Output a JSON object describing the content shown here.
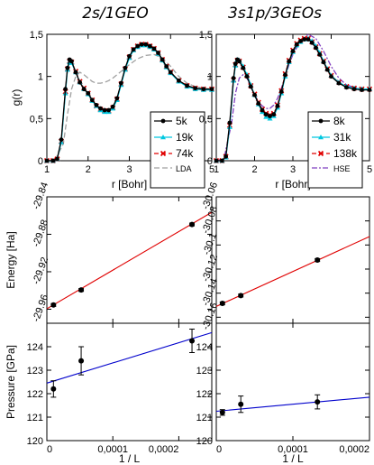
{
  "titles": {
    "left": "2s/1GEO",
    "right": "3s1p/3GEOs"
  },
  "chart_data": [
    {
      "id": "gr_left",
      "type": "line",
      "xlabel": "r [Bohr]",
      "ylabel": "g(r)",
      "xlim": [
        1,
        5
      ],
      "ylim": [
        0,
        1.5
      ],
      "xticks": [
        1,
        2,
        3,
        4,
        5
      ],
      "xtick_labels": [
        "1",
        "2",
        "3",
        "4",
        "5"
      ],
      "yticks": [
        0,
        0.5,
        1,
        1.5
      ],
      "ytick_labels": [
        "0",
        "0,5",
        "1",
        "1,5"
      ],
      "legend": "right",
      "series": [
        {
          "name": "5k",
          "color": "#000000",
          "dash": "",
          "marker": "circle",
          "x": [
            1.0,
            1.15,
            1.25,
            1.35,
            1.45,
            1.5,
            1.55,
            1.6,
            1.7,
            1.8,
            1.9,
            2.0,
            2.1,
            2.2,
            2.3,
            2.4,
            2.5,
            2.6,
            2.7,
            2.8,
            2.9,
            3.0,
            3.1,
            3.2,
            3.3,
            3.4,
            3.5,
            3.6,
            3.7,
            3.8,
            3.9,
            4.0,
            4.2,
            4.4,
            4.6,
            4.8,
            5.0
          ],
          "y": [
            0,
            0,
            0.02,
            0.25,
            0.85,
            1.1,
            1.2,
            1.18,
            1.05,
            0.93,
            0.85,
            0.8,
            0.72,
            0.66,
            0.62,
            0.6,
            0.6,
            0.64,
            0.74,
            0.92,
            1.1,
            1.24,
            1.32,
            1.36,
            1.38,
            1.38,
            1.36,
            1.33,
            1.28,
            1.2,
            1.12,
            1.05,
            0.95,
            0.89,
            0.86,
            0.85,
            0.85
          ]
        },
        {
          "name": "19k",
          "color": "#00c8e0",
          "dash": "",
          "marker": "triangle",
          "x": [
            1.0,
            1.15,
            1.25,
            1.35,
            1.45,
            1.5,
            1.55,
            1.6,
            1.7,
            1.8,
            1.9,
            2.0,
            2.1,
            2.2,
            2.3,
            2.4,
            2.5,
            2.6,
            2.7,
            2.8,
            2.9,
            3.0,
            3.1,
            3.2,
            3.3,
            3.4,
            3.5,
            3.6,
            3.7,
            3.8,
            3.9,
            4.0,
            4.2,
            4.4,
            4.6,
            4.8,
            5.0
          ],
          "y": [
            0,
            0,
            0.02,
            0.22,
            0.8,
            1.08,
            1.17,
            1.16,
            1.05,
            0.93,
            0.85,
            0.79,
            0.71,
            0.65,
            0.6,
            0.58,
            0.58,
            0.62,
            0.72,
            0.9,
            1.08,
            1.22,
            1.31,
            1.35,
            1.37,
            1.37,
            1.35,
            1.32,
            1.27,
            1.19,
            1.11,
            1.04,
            0.94,
            0.88,
            0.85,
            0.84,
            0.84
          ]
        },
        {
          "name": "74k",
          "color": "#e00000",
          "dash": "5,3",
          "marker": "cross",
          "x": [
            1.0,
            1.15,
            1.25,
            1.35,
            1.45,
            1.5,
            1.55,
            1.6,
            1.7,
            1.8,
            1.9,
            2.0,
            2.1,
            2.2,
            2.3,
            2.4,
            2.5,
            2.6,
            2.7,
            2.8,
            2.9,
            3.0,
            3.1,
            3.2,
            3.3,
            3.4,
            3.5,
            3.6,
            3.7,
            3.8,
            3.9,
            4.0,
            4.2,
            4.4,
            4.6,
            4.8,
            5.0
          ],
          "y": [
            0,
            0,
            0.02,
            0.23,
            0.82,
            1.09,
            1.18,
            1.17,
            1.06,
            0.94,
            0.86,
            0.8,
            0.72,
            0.65,
            0.61,
            0.59,
            0.59,
            0.63,
            0.73,
            0.91,
            1.09,
            1.23,
            1.32,
            1.36,
            1.38,
            1.38,
            1.36,
            1.33,
            1.28,
            1.2,
            1.12,
            1.05,
            0.95,
            0.89,
            0.86,
            0.85,
            0.85
          ]
        },
        {
          "name": "LDA",
          "color": "#a0a0a0",
          "dash": "6,3",
          "marker": "none",
          "x": [
            1.0,
            1.2,
            1.4,
            1.5,
            1.6,
            1.7,
            1.8,
            1.9,
            2.0,
            2.1,
            2.2,
            2.3,
            2.4,
            2.5,
            2.6,
            2.7,
            2.8,
            2.9,
            3.0,
            3.2,
            3.4,
            3.6,
            3.8,
            4.0,
            4.2,
            4.4,
            4.6,
            4.8,
            5.0
          ],
          "y": [
            0,
            0.01,
            0.2,
            0.55,
            0.85,
            1.0,
            1.05,
            1.02,
            0.98,
            0.94,
            0.92,
            0.92,
            0.93,
            0.95,
            0.98,
            1.02,
            1.06,
            1.1,
            1.14,
            1.21,
            1.25,
            1.26,
            1.22,
            1.12,
            1.0,
            0.92,
            0.88,
            0.86,
            0.85
          ]
        }
      ]
    },
    {
      "id": "gr_right",
      "type": "line",
      "xlabel": "r [Bohr]",
      "ylabel": "",
      "xlim": [
        1,
        5
      ],
      "ylim": [
        0,
        1.5
      ],
      "xticks": [
        1,
        2,
        3,
        4,
        5
      ],
      "xtick_labels": [
        "1",
        "2",
        "3",
        "4",
        "5"
      ],
      "yticks": [
        0,
        0.5,
        1,
        1.5
      ],
      "ytick_labels": [
        "0",
        "0,5",
        "1",
        "1,5"
      ],
      "legend": "right",
      "series": [
        {
          "name": "8k",
          "color": "#000000",
          "dash": "",
          "marker": "circle",
          "x": [
            1.0,
            1.15,
            1.25,
            1.35,
            1.45,
            1.5,
            1.55,
            1.6,
            1.7,
            1.8,
            1.9,
            2.0,
            2.1,
            2.2,
            2.3,
            2.4,
            2.5,
            2.6,
            2.7,
            2.8,
            2.9,
            3.0,
            3.1,
            3.2,
            3.3,
            3.4,
            3.5,
            3.6,
            3.7,
            3.8,
            3.9,
            4.0,
            4.2,
            4.4,
            4.6,
            4.8,
            5.0
          ],
          "y": [
            0,
            0,
            0.05,
            0.45,
            0.98,
            1.15,
            1.2,
            1.18,
            1.1,
            1.0,
            0.88,
            0.78,
            0.68,
            0.6,
            0.55,
            0.53,
            0.55,
            0.65,
            0.82,
            1.02,
            1.18,
            1.3,
            1.38,
            1.42,
            1.44,
            1.44,
            1.4,
            1.34,
            1.26,
            1.17,
            1.08,
            1.0,
            0.92,
            0.87,
            0.85,
            0.84,
            0.84
          ]
        },
        {
          "name": "31k",
          "color": "#00c8e0",
          "dash": "",
          "marker": "triangle",
          "x": [
            1.0,
            1.15,
            1.25,
            1.35,
            1.45,
            1.5,
            1.55,
            1.6,
            1.7,
            1.8,
            1.9,
            2.0,
            2.1,
            2.2,
            2.3,
            2.4,
            2.5,
            2.6,
            2.7,
            2.8,
            2.9,
            3.0,
            3.1,
            3.2,
            3.3,
            3.4,
            3.5,
            3.6,
            3.7,
            3.8,
            3.9,
            4.0,
            4.2,
            4.4,
            4.6,
            4.8,
            5.0
          ],
          "y": [
            0,
            0,
            0.04,
            0.4,
            0.95,
            1.13,
            1.2,
            1.19,
            1.12,
            1.02,
            0.9,
            0.78,
            0.67,
            0.58,
            0.52,
            0.5,
            0.53,
            0.63,
            0.8,
            1.0,
            1.17,
            1.29,
            1.37,
            1.41,
            1.44,
            1.45,
            1.42,
            1.36,
            1.28,
            1.18,
            1.09,
            1.01,
            0.93,
            0.88,
            0.86,
            0.85,
            0.85
          ]
        },
        {
          "name": "138k",
          "color": "#e00000",
          "dash": "5,3",
          "marker": "cross",
          "x": [
            1.0,
            1.15,
            1.25,
            1.35,
            1.45,
            1.5,
            1.55,
            1.6,
            1.7,
            1.8,
            1.9,
            2.0,
            2.1,
            2.2,
            2.3,
            2.4,
            2.5,
            2.6,
            2.7,
            2.8,
            2.9,
            3.0,
            3.1,
            3.2,
            3.3,
            3.4,
            3.5,
            3.6,
            3.7,
            3.8,
            3.9,
            4.0,
            4.2,
            4.4,
            4.6,
            4.8,
            5.0
          ],
          "y": [
            0,
            0,
            0.05,
            0.42,
            0.96,
            1.14,
            1.19,
            1.18,
            1.11,
            1.01,
            0.89,
            0.79,
            0.69,
            0.61,
            0.56,
            0.54,
            0.56,
            0.66,
            0.83,
            1.03,
            1.19,
            1.31,
            1.39,
            1.43,
            1.45,
            1.45,
            1.41,
            1.35,
            1.27,
            1.18,
            1.09,
            1.01,
            0.93,
            0.88,
            0.86,
            0.85,
            0.85
          ]
        },
        {
          "name": "HSE",
          "color": "#8040c0",
          "dash": "6,2,2,2",
          "marker": "none",
          "x": [
            1.0,
            1.2,
            1.4,
            1.5,
            1.6,
            1.7,
            1.8,
            1.9,
            2.0,
            2.1,
            2.2,
            2.3,
            2.4,
            2.5,
            2.6,
            2.7,
            2.8,
            2.9,
            3.0,
            3.2,
            3.4,
            3.6,
            3.8,
            4.0,
            4.2,
            4.4,
            4.6,
            4.8,
            5.0
          ],
          "y": [
            0,
            0.02,
            0.45,
            0.8,
            0.98,
            1.02,
            0.98,
            0.88,
            0.78,
            0.7,
            0.65,
            0.62,
            0.62,
            0.66,
            0.74,
            0.86,
            1.0,
            1.14,
            1.26,
            1.42,
            1.5,
            1.45,
            1.3,
            1.12,
            0.98,
            0.9,
            0.87,
            0.85,
            0.84
          ]
        }
      ]
    },
    {
      "id": "energy_left",
      "type": "scatter",
      "xlabel": "",
      "ylabel": "Energy [Ha]",
      "xlim": [
        0,
        0.00025
      ],
      "ylim": [
        -29.975,
        -29.84
      ],
      "xticks": [
        0,
        0.0001,
        0.0002
      ],
      "xtick_labels": [],
      "yticks": [
        -29.96,
        -29.92,
        -29.88,
        -29.84
      ],
      "ytick_labels": [
        "-29.96",
        "-29.92",
        "-29.88",
        "-29.84"
      ],
      "points": {
        "x": [
          1e-05,
          5.2e-05,
          0.00022
        ],
        "y": [
          -29.9555,
          -29.9395,
          -29.8695
        ],
        "err": [
          0.0015,
          0.0015,
          0.0015
        ]
      },
      "fit": {
        "color": "#e00000",
        "x": [
          0,
          0.00025
        ],
        "y": [
          -29.9595,
          -29.8565
        ]
      }
    },
    {
      "id": "energy_right",
      "type": "scatter",
      "xlabel": "",
      "ylabel": "",
      "xlim": [
        0,
        0.0002
      ],
      "ylim": [
        -30.165,
        -30.06
      ],
      "xticks": [
        0,
        0.0001,
        0.0002
      ],
      "xtick_labels": [],
      "yticks": [
        -30.16,
        -30.14,
        -30.12,
        -30.1,
        -30.08,
        -30.06
      ],
      "ytick_labels": [
        "-30.16",
        "-30.14",
        "-30.12",
        "-30.1",
        "-30.08",
        "-30.06"
      ],
      "points": {
        "x": [
          8e-06,
          3.2e-05,
          0.000132
        ],
        "y": [
          -30.1485,
          -30.142,
          -30.1125
        ],
        "err": [
          0.0012,
          0.0012,
          0.0012
        ]
      },
      "fit": {
        "color": "#e00000",
        "x": [
          0,
          0.0002
        ],
        "y": [
          -30.151,
          -30.093
        ]
      }
    },
    {
      "id": "pressure_left",
      "type": "scatter",
      "xlabel": "1 / L",
      "ylabel": "Pressure [GPa]",
      "xlim": [
        0,
        0.00025
      ],
      "ylim": [
        120,
        125
      ],
      "xticks": [
        0,
        0.0001,
        0.0002
      ],
      "xtick_labels": [
        "0",
        "0,0001",
        "0,0002"
      ],
      "yticks": [
        120,
        121,
        122,
        123,
        124
      ],
      "ytick_labels": [
        "120",
        "121",
        "122",
        "123",
        "124"
      ],
      "points": {
        "x": [
          1e-05,
          5.2e-05,
          0.00022
        ],
        "y": [
          122.2,
          123.4,
          124.25
        ],
        "err": [
          0.35,
          0.6,
          0.5
        ]
      },
      "fit": {
        "color": "#0000cc",
        "x": [
          0,
          0.00025
        ],
        "y": [
          122.45,
          124.6
        ]
      }
    },
    {
      "id": "pressure_right",
      "type": "scatter",
      "xlabel": "1 / L",
      "ylabel": "",
      "xlim": [
        0,
        0.0002
      ],
      "ylim": [
        120,
        125
      ],
      "xticks": [
        0,
        0.0001,
        0.0002
      ],
      "xtick_labels": [
        "0",
        "0,0001",
        "0,0002"
      ],
      "yticks": [
        120,
        121,
        122,
        123,
        124
      ],
      "ytick_labels": [
        "120",
        "121",
        "122",
        "123",
        "124"
      ],
      "points": {
        "x": [
          8e-06,
          3.2e-05,
          0.000132
        ],
        "y": [
          121.2,
          121.55,
          121.65
        ],
        "err": [
          0.12,
          0.35,
          0.3
        ]
      },
      "fit": {
        "color": "#0000cc",
        "x": [
          0,
          0.0002
        ],
        "y": [
          121.25,
          121.85
        ]
      }
    }
  ]
}
